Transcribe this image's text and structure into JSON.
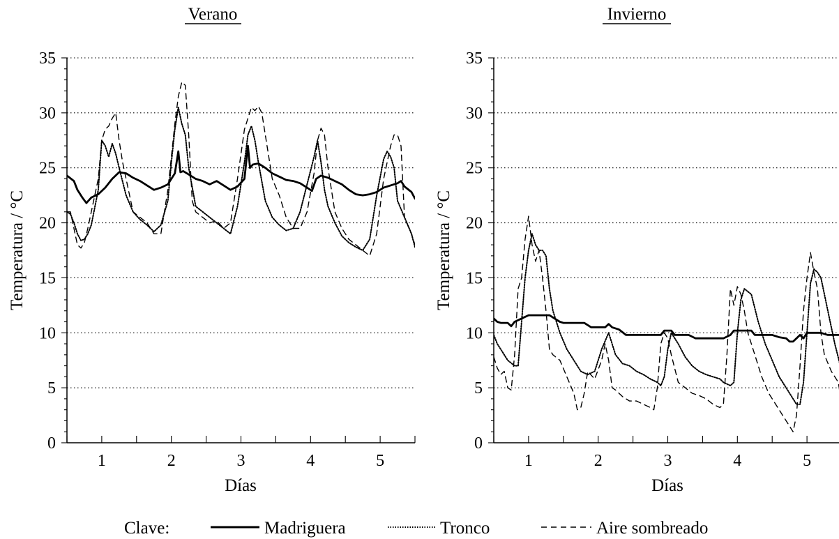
{
  "colors": {
    "line": "#000000",
    "grid": "#000000",
    "background": "#ffffff"
  },
  "legend": {
    "title": "Clave:",
    "items": [
      {
        "label": "Madriguera",
        "style": "solid"
      },
      {
        "label": "Tronco",
        "style": "dotted"
      },
      {
        "label": "Aire sombreado",
        "style": "dashed"
      }
    ]
  },
  "chart_data": [
    {
      "type": "line",
      "title": "Verano",
      "xlabel": "Días",
      "ylabel": "Temperatura / °C",
      "xlim": [
        0.5,
        5.5
      ],
      "ylim": [
        0,
        35
      ],
      "xticks": [
        1,
        2,
        3,
        4,
        5
      ],
      "yticks": [
        0,
        5,
        10,
        15,
        20,
        25,
        30,
        35
      ],
      "grid": "horizontal-dotted",
      "series": [
        {
          "name": "Madriguera",
          "style": "solid",
          "x": [
            0.5,
            0.6,
            0.65,
            0.72,
            0.78,
            0.85,
            0.95,
            1.05,
            1.15,
            1.25,
            1.35,
            1.45,
            1.55,
            1.65,
            1.75,
            1.85,
            1.95,
            2.05,
            2.1,
            2.13,
            2.17,
            2.25,
            2.35,
            2.45,
            2.55,
            2.65,
            2.75,
            2.85,
            2.95,
            3.05,
            3.1,
            3.13,
            3.17,
            3.25,
            3.35,
            3.45,
            3.55,
            3.65,
            3.75,
            3.85,
            3.95,
            4.02,
            4.08,
            4.15,
            4.25,
            4.35,
            4.45,
            4.55,
            4.65,
            4.75,
            4.85,
            4.95,
            5.05,
            5.15,
            5.25,
            5.3,
            5.35,
            5.45,
            5.5
          ],
          "y": [
            24.3,
            23.8,
            23.0,
            22.3,
            21.8,
            22.3,
            22.6,
            23.2,
            24.0,
            24.6,
            24.5,
            24.1,
            23.8,
            23.4,
            23.0,
            23.2,
            23.5,
            24.5,
            26.5,
            24.6,
            24.7,
            24.4,
            24.0,
            23.8,
            23.5,
            23.8,
            23.4,
            23.0,
            23.3,
            24.0,
            27.0,
            25.0,
            25.3,
            25.4,
            25.0,
            24.5,
            24.2,
            23.9,
            23.8,
            23.6,
            23.2,
            22.9,
            24.0,
            24.3,
            24.1,
            23.8,
            23.5,
            23.0,
            22.6,
            22.5,
            22.6,
            22.8,
            23.2,
            23.4,
            23.6,
            23.8,
            23.3,
            22.8,
            22.2
          ]
        },
        {
          "name": "Tronco",
          "style": "dotted",
          "x": [
            0.5,
            0.55,
            0.6,
            0.65,
            0.7,
            0.75,
            0.8,
            0.85,
            0.95,
            1.0,
            1.05,
            1.1,
            1.15,
            1.2,
            1.25,
            1.35,
            1.45,
            1.55,
            1.65,
            1.75,
            1.85,
            1.95,
            2.0,
            2.05,
            2.1,
            2.15,
            2.2,
            2.25,
            2.35,
            2.45,
            2.55,
            2.65,
            2.75,
            2.85,
            2.95,
            3.05,
            3.1,
            3.15,
            3.2,
            3.25,
            3.35,
            3.45,
            3.55,
            3.65,
            3.75,
            3.85,
            3.95,
            4.05,
            4.1,
            4.15,
            4.2,
            4.25,
            4.35,
            4.45,
            4.55,
            4.65,
            4.75,
            4.85,
            4.95,
            5.05,
            5.1,
            5.15,
            5.2,
            5.25,
            5.35,
            5.45,
            5.5
          ],
          "y": [
            21.0,
            20.8,
            20.0,
            19.0,
            18.4,
            18.5,
            19.0,
            19.8,
            23.0,
            27.5,
            27.0,
            26.0,
            27.2,
            26.3,
            25.0,
            22.5,
            21.0,
            20.3,
            19.8,
            19.2,
            19.8,
            22.0,
            25.5,
            28.5,
            30.5,
            29.0,
            28.0,
            25.0,
            21.5,
            21.0,
            20.5,
            20.0,
            19.5,
            19.0,
            21.5,
            25.5,
            28.0,
            28.8,
            27.5,
            25.5,
            22.0,
            20.5,
            19.8,
            19.3,
            19.5,
            21.0,
            23.5,
            26.0,
            27.5,
            25.5,
            23.0,
            21.5,
            20.0,
            18.8,
            18.2,
            17.8,
            17.5,
            18.5,
            22.5,
            25.8,
            26.5,
            26.0,
            25.0,
            22.0,
            20.5,
            19.0,
            17.8
          ]
        },
        {
          "name": "Aire sombreado",
          "style": "dashed",
          "x": [
            0.5,
            0.55,
            0.6,
            0.65,
            0.7,
            0.75,
            0.8,
            0.85,
            0.95,
            1.0,
            1.05,
            1.1,
            1.15,
            1.2,
            1.25,
            1.3,
            1.35,
            1.45,
            1.55,
            1.65,
            1.75,
            1.85,
            1.95,
            2.05,
            2.1,
            2.15,
            2.2,
            2.25,
            2.3,
            2.35,
            2.45,
            2.55,
            2.65,
            2.75,
            2.85,
            2.95,
            3.05,
            3.1,
            3.15,
            3.2,
            3.25,
            3.3,
            3.35,
            3.45,
            3.55,
            3.65,
            3.75,
            3.85,
            3.95,
            4.05,
            4.1,
            4.15,
            4.2,
            4.25,
            4.35,
            4.45,
            4.55,
            4.65,
            4.75,
            4.85,
            4.95,
            5.05,
            5.15,
            5.2,
            5.25,
            5.3,
            5.35,
            5.45,
            5.5
          ],
          "y": [
            21.0,
            21.0,
            19.5,
            18.0,
            17.7,
            18.2,
            19.5,
            21.0,
            24.0,
            27.5,
            28.5,
            28.8,
            29.5,
            30.0,
            27.5,
            25.5,
            24.0,
            21.0,
            20.5,
            20.0,
            19.0,
            19.0,
            23.0,
            29.0,
            31.5,
            32.8,
            32.5,
            28.0,
            22.0,
            21.0,
            20.5,
            20.0,
            20.2,
            19.5,
            20.0,
            24.0,
            28.5,
            29.5,
            30.5,
            30.2,
            30.6,
            30.0,
            28.0,
            24.0,
            22.5,
            20.5,
            19.5,
            19.5,
            21.0,
            24.5,
            27.5,
            28.6,
            28.0,
            25.0,
            21.0,
            19.5,
            18.5,
            18.0,
            17.5,
            17.0,
            19.0,
            24.0,
            27.0,
            28.0,
            28.0,
            27.0,
            20.5,
            19.0,
            18.0
          ]
        }
      ]
    },
    {
      "type": "line",
      "title": "Invierno",
      "xlabel": "Días",
      "ylabel": "Temperatura / °C",
      "xlim": [
        0.5,
        5.5
      ],
      "ylim": [
        0,
        35
      ],
      "xticks": [
        1,
        2,
        3,
        4,
        5
      ],
      "yticks": [
        0,
        5,
        10,
        15,
        20,
        25,
        30,
        35
      ],
      "grid": "horizontal-dotted",
      "series": [
        {
          "name": "Madriguera",
          "style": "solid",
          "x": [
            0.5,
            0.55,
            0.6,
            0.7,
            0.75,
            0.8,
            0.9,
            1.0,
            1.1,
            1.2,
            1.3,
            1.4,
            1.45,
            1.5,
            1.6,
            1.7,
            1.8,
            1.9,
            2.0,
            2.1,
            2.15,
            2.2,
            2.3,
            2.4,
            2.5,
            2.6,
            2.7,
            2.8,
            2.9,
            2.95,
            3.05,
            3.1,
            3.2,
            3.3,
            3.4,
            3.5,
            3.6,
            3.7,
            3.8,
            3.9,
            3.95,
            4.0,
            4.1,
            4.2,
            4.25,
            4.3,
            4.5,
            4.6,
            4.7,
            4.75,
            4.8,
            4.85,
            4.9,
            4.95,
            5.0,
            5.1,
            5.2,
            5.3,
            5.4,
            5.5
          ],
          "y": [
            11.3,
            11.0,
            10.9,
            10.9,
            10.6,
            11.0,
            11.3,
            11.6,
            11.6,
            11.6,
            11.6,
            11.2,
            11.0,
            10.9,
            10.9,
            10.9,
            10.9,
            10.5,
            10.5,
            10.5,
            10.8,
            10.5,
            10.3,
            9.8,
            9.8,
            9.8,
            9.8,
            9.8,
            9.8,
            10.2,
            10.2,
            9.8,
            9.8,
            9.8,
            9.5,
            9.5,
            9.5,
            9.5,
            9.5,
            9.8,
            10.2,
            10.2,
            10.2,
            10.2,
            9.8,
            9.8,
            9.8,
            9.6,
            9.5,
            9.2,
            9.2,
            9.5,
            9.8,
            9.5,
            10.0,
            10.0,
            10.0,
            9.8,
            9.8,
            9.8
          ]
        },
        {
          "name": "Tronco",
          "style": "dotted",
          "x": [
            0.5,
            0.55,
            0.6,
            0.65,
            0.7,
            0.8,
            0.85,
            0.9,
            0.95,
            1.0,
            1.05,
            1.1,
            1.15,
            1.2,
            1.25,
            1.3,
            1.35,
            1.45,
            1.55,
            1.65,
            1.75,
            1.85,
            1.95,
            2.05,
            2.15,
            2.25,
            2.35,
            2.45,
            2.55,
            2.65,
            2.75,
            2.85,
            2.9,
            2.95,
            3.0,
            3.05,
            3.15,
            3.25,
            3.35,
            3.45,
            3.55,
            3.65,
            3.75,
            3.8,
            3.9,
            3.95,
            4.0,
            4.05,
            4.1,
            4.2,
            4.3,
            4.4,
            4.5,
            4.6,
            4.7,
            4.8,
            4.85,
            4.9,
            4.95,
            5.0,
            5.05,
            5.1,
            5.15,
            5.2,
            5.3,
            5.4,
            5.5
          ],
          "y": [
            9.8,
            9.0,
            8.5,
            8.0,
            7.5,
            7.0,
            7.0,
            11.0,
            15.0,
            17.5,
            19.0,
            18.0,
            17.5,
            17.5,
            17.0,
            14.0,
            12.0,
            10.0,
            8.5,
            7.5,
            6.5,
            6.2,
            6.5,
            8.5,
            10.0,
            8.0,
            7.2,
            7.0,
            6.5,
            6.2,
            5.8,
            5.5,
            5.2,
            6.0,
            8.5,
            10.0,
            9.0,
            7.8,
            7.0,
            6.5,
            6.2,
            6.0,
            5.8,
            5.5,
            5.2,
            5.5,
            10.0,
            13.0,
            14.0,
            13.5,
            11.0,
            9.0,
            7.5,
            6.0,
            5.0,
            4.0,
            3.5,
            3.5,
            5.5,
            10.0,
            14.5,
            15.8,
            15.5,
            15.0,
            12.0,
            9.0,
            6.5
          ]
        },
        {
          "name": "Aire sombreado",
          "style": "dashed",
          "x": [
            0.5,
            0.55,
            0.6,
            0.65,
            0.7,
            0.75,
            0.8,
            0.85,
            0.9,
            0.95,
            1.0,
            1.05,
            1.1,
            1.15,
            1.2,
            1.25,
            1.3,
            1.35,
            1.45,
            1.55,
            1.65,
            1.7,
            1.75,
            1.8,
            1.85,
            1.95,
            2.05,
            2.1,
            2.15,
            2.2,
            2.25,
            2.35,
            2.45,
            2.55,
            2.65,
            2.75,
            2.8,
            2.85,
            2.9,
            2.95,
            3.0,
            3.05,
            3.15,
            3.25,
            3.35,
            3.45,
            3.55,
            3.65,
            3.75,
            3.8,
            3.85,
            3.9,
            3.95,
            4.0,
            4.05,
            4.1,
            4.15,
            4.25,
            4.35,
            4.45,
            4.55,
            4.65,
            4.7,
            4.75,
            4.8,
            4.85,
            4.9,
            4.95,
            5.0,
            5.05,
            5.1,
            5.15,
            5.2,
            5.25,
            5.35,
            5.45,
            5.5
          ],
          "y": [
            7.8,
            6.8,
            6.2,
            6.5,
            5.0,
            4.8,
            8.0,
            14.0,
            15.0,
            18.5,
            20.6,
            18.0,
            16.5,
            17.5,
            15.0,
            12.0,
            8.5,
            8.0,
            7.5,
            6.0,
            4.5,
            3.0,
            3.2,
            4.5,
            6.5,
            5.8,
            7.5,
            9.0,
            7.5,
            5.0,
            4.8,
            4.2,
            3.8,
            3.8,
            3.5,
            3.2,
            3.0,
            5.0,
            9.0,
            10.0,
            9.5,
            8.0,
            5.5,
            5.0,
            4.5,
            4.3,
            4.0,
            3.5,
            3.2,
            3.5,
            8.0,
            14.0,
            12.5,
            14.2,
            13.5,
            12.0,
            10.0,
            8.0,
            6.0,
            4.5,
            3.5,
            2.5,
            2.0,
            1.5,
            1.0,
            2.5,
            7.0,
            12.0,
            15.0,
            17.3,
            15.5,
            14.0,
            10.0,
            8.0,
            6.5,
            5.5,
            3.5
          ]
        }
      ]
    }
  ]
}
